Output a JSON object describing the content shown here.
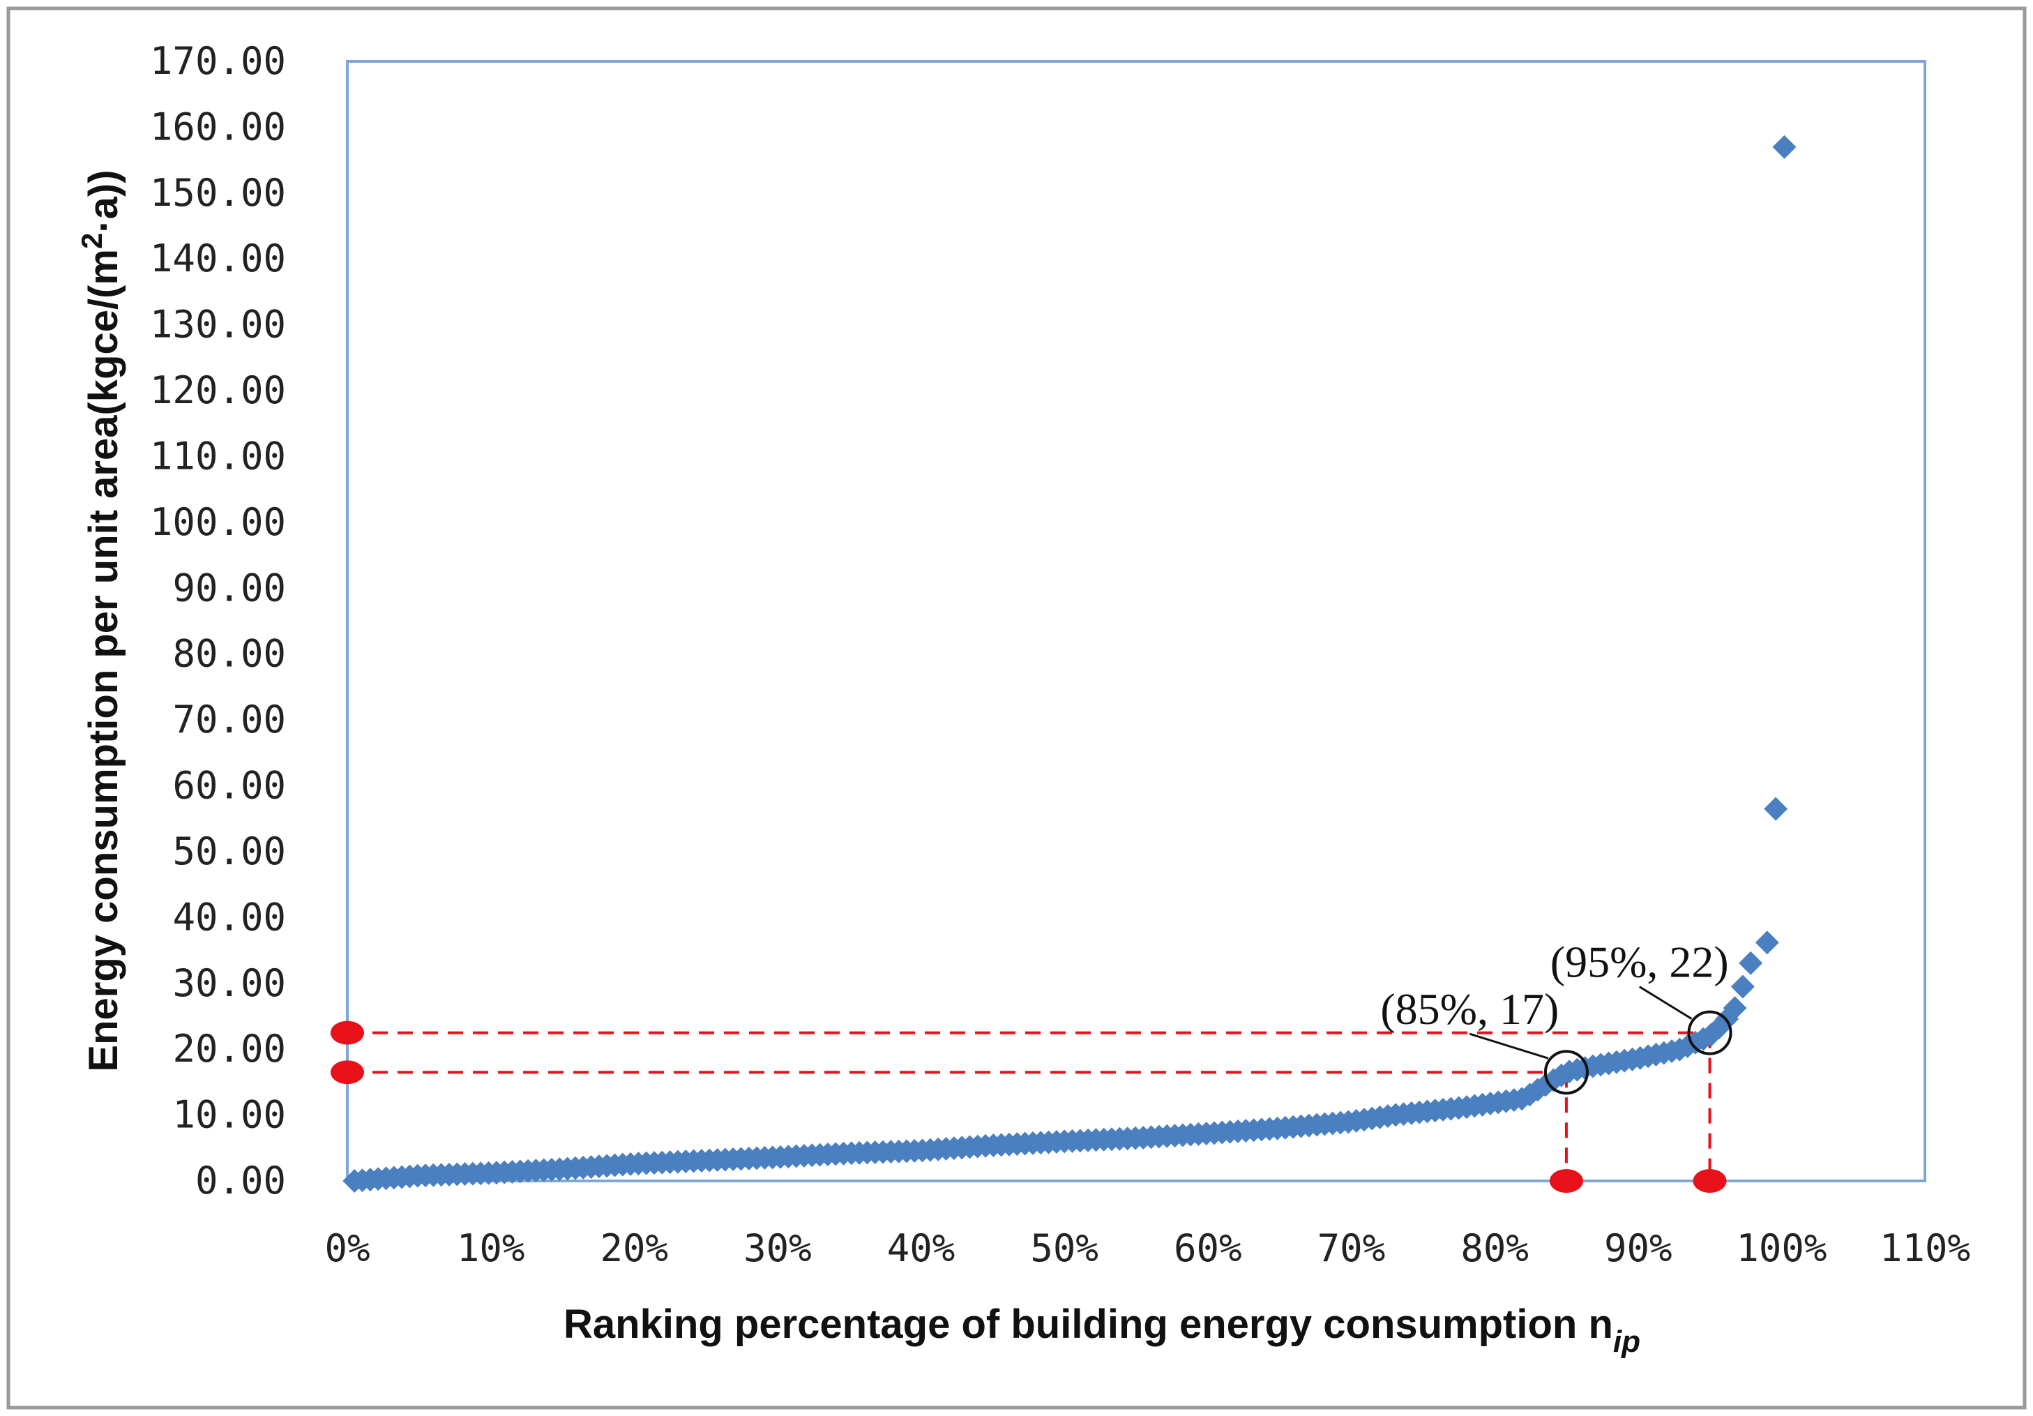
{
  "chart_data": {
    "type": "scatter",
    "xlabel_main": "Ranking percentage of building  energy consumption n",
    "xlabel_sub": "ip",
    "ylabel": "Energy consumption per unit area(kgce/(m",
    "ylabel_sup": "2",
    "ylabel_tail": "·a))",
    "xlim": [
      0,
      110
    ],
    "ylim": [
      0,
      170
    ],
    "x_ticks": [
      "0%",
      "10%",
      "20%",
      "30%",
      "40%",
      "50%",
      "60%",
      "70%",
      "80%",
      "90%",
      "100%",
      "110%"
    ],
    "y_ticks": [
      "0.00",
      "10.00",
      "20.00",
      "30.00",
      "40.00",
      "50.00",
      "60.00",
      "70.00",
      "80.00",
      "90.00",
      "100.00",
      "110.00",
      "120.00",
      "130.00",
      "140.00",
      "150.00",
      "160.00",
      "170.00"
    ],
    "series_color": "#4a7fc1",
    "marker_color": "#e8111a",
    "guide_color": "#e8111a",
    "curve": [
      [
        0.5,
        0.0
      ],
      [
        5,
        0.8
      ],
      [
        10,
        1.2
      ],
      [
        15,
        1.8
      ],
      [
        20,
        2.6
      ],
      [
        25,
        3.1
      ],
      [
        30,
        3.6
      ],
      [
        35,
        4.2
      ],
      [
        40,
        4.6
      ],
      [
        45,
        5.4
      ],
      [
        50,
        6.0
      ],
      [
        55,
        6.5
      ],
      [
        60,
        7.2
      ],
      [
        65,
        8.0
      ],
      [
        70,
        9.0
      ],
      [
        73,
        10.0
      ],
      [
        78,
        11.2
      ],
      [
        82,
        12.5
      ],
      [
        85,
        16.5
      ],
      [
        87,
        17.5
      ],
      [
        90,
        18.6
      ],
      [
        93,
        20.0
      ],
      [
        95,
        22.0
      ],
      [
        96,
        24.0
      ],
      [
        97,
        27.0
      ],
      [
        97.6,
        32.0
      ],
      [
        98.3,
        35.0
      ]
    ],
    "outliers": [
      [
        99.6,
        56.5
      ],
      [
        100.2,
        157.0
      ],
      [
        99.0,
        36.2
      ]
    ],
    "annotations": [
      {
        "label": "(85%, 17)",
        "x": 85,
        "y": 16.5
      },
      {
        "label": "(95%, 22)",
        "x": 95,
        "y": 22.5
      }
    ],
    "guide_lines": [
      {
        "x": 85,
        "y": 16.5
      },
      {
        "x": 95,
        "y": 22.5
      }
    ]
  }
}
